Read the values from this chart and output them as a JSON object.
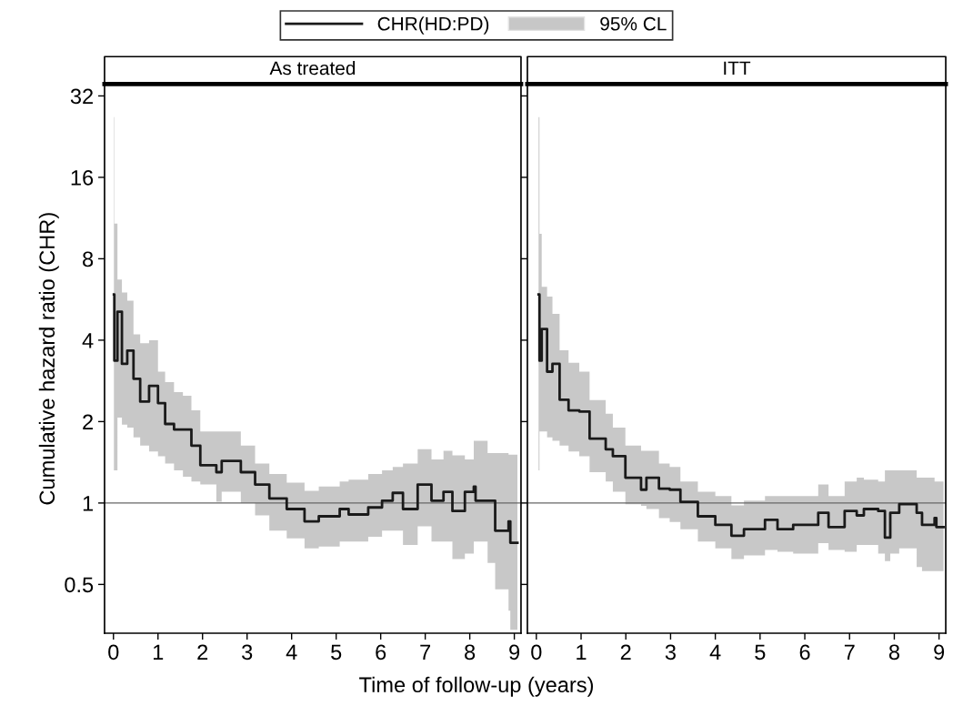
{
  "chart_data": [
    {
      "type": "step",
      "title": "As treated",
      "xlabel": "Time of follow-up (years)",
      "ylabel": "Cumulative hazard ratio (CHR)",
      "annotations": [
        "95% CL"
      ],
      "log": "y",
      "xlim": [
        -0.2,
        9.15
      ],
      "ylim": [
        0.33,
        35.4
      ],
      "xticks": [
        0,
        1,
        2,
        3,
        4,
        5,
        6,
        7,
        8,
        9
      ],
      "yticks": [
        0.5,
        1,
        2,
        4,
        8,
        16,
        32
      ],
      "legend": "top",
      "ref_lines": [
        {
          "axis": "y",
          "value": 1,
          "color": "#666666"
        }
      ],
      "series": [
        {
          "name": "CHR(HD:PD)",
          "color": "#1a1a1a",
          "x": [
            0.01,
            0.02,
            0.09,
            0.19,
            0.31,
            0.45,
            0.6,
            0.8,
            1.0,
            1.16,
            1.36,
            1.56,
            1.75,
            1.95,
            2.31,
            2.43,
            2.86,
            3.18,
            3.5,
            3.89,
            4.29,
            4.61,
            5.08,
            5.28,
            5.72,
            6.03,
            6.27,
            6.5,
            6.83,
            7.14,
            7.41,
            7.61,
            7.89,
            8.09,
            8.13,
            8.4,
            8.57,
            8.87,
            8.91,
            9.07
          ],
          "values": [
            5.9,
            3.36,
            5.1,
            3.27,
            3.66,
            2.88,
            2.37,
            2.71,
            2.34,
            1.96,
            1.87,
            1.87,
            1.63,
            1.38,
            1.3,
            1.43,
            1.3,
            1.17,
            1.04,
            0.95,
            0.855,
            0.893,
            0.95,
            0.907,
            0.963,
            1.02,
            1.09,
            0.95,
            1.17,
            1.02,
            1.1,
            0.934,
            1.1,
            1.15,
            1.02,
            1.02,
            0.79,
            0.855,
            0.713,
            0.713
          ],
          "upper": [
            26.7,
            10.8,
            6.7,
            6.0,
            5.6,
            4.2,
            3.9,
            4.0,
            3.06,
            2.8,
            2.57,
            2.49,
            2.2,
            1.84,
            1.84,
            1.84,
            1.63,
            1.4,
            1.28,
            1.19,
            1.11,
            1.15,
            1.2,
            1.22,
            1.28,
            1.32,
            1.36,
            1.4,
            1.58,
            1.45,
            1.56,
            1.5,
            1.45,
            1.7,
            1.7,
            1.53,
            1.53,
            1.51,
            1.51,
            1.51
          ],
          "lower": [
            1.32,
            1.32,
            2.07,
            1.95,
            1.9,
            1.75,
            1.63,
            1.55,
            1.49,
            1.4,
            1.32,
            1.25,
            1.2,
            1.17,
            1.01,
            1.1,
            1.0,
            0.9,
            0.79,
            0.74,
            0.68,
            0.69,
            0.72,
            0.72,
            0.75,
            0.79,
            0.79,
            0.7,
            0.82,
            0.72,
            0.72,
            0.62,
            0.65,
            0.72,
            0.72,
            0.6,
            0.48,
            0.4,
            0.34,
            0.34
          ]
        }
      ]
    },
    {
      "type": "step",
      "title": "ITT",
      "log": "y",
      "xlim": [
        -0.2,
        9.15
      ],
      "ylim": [
        0.33,
        35.4
      ],
      "xticks": [
        0,
        1,
        2,
        3,
        4,
        5,
        6,
        7,
        8,
        9
      ],
      "yticks": [
        0.5,
        1,
        2,
        4,
        8,
        16,
        32
      ],
      "tick_labels": "x",
      "ref_lines": [
        {
          "axis": "y",
          "value": 1,
          "color": "#666666"
        }
      ],
      "series": [
        {
          "color": "#1a1a1a",
          "x": [
            0.05,
            0.07,
            0.12,
            0.24,
            0.36,
            0.52,
            0.72,
            0.96,
            1.19,
            1.55,
            1.71,
            1.99,
            2.34,
            2.46,
            2.74,
            2.98,
            3.22,
            3.61,
            4.0,
            4.36,
            4.64,
            5.11,
            5.39,
            5.74,
            6.3,
            6.53,
            6.89,
            7.16,
            7.32,
            7.64,
            7.79,
            7.91,
            8.11,
            8.5,
            8.62,
            8.9,
            8.94,
            9.1
          ],
          "values": [
            5.9,
            3.36,
            4.4,
            3.06,
            3.27,
            2.41,
            2.2,
            2.18,
            1.73,
            1.58,
            1.49,
            1.24,
            1.12,
            1.24,
            1.13,
            1.12,
            1.01,
            0.893,
            0.83,
            0.757,
            0.8,
            0.867,
            0.8,
            0.83,
            0.92,
            0.815,
            0.934,
            0.9,
            0.95,
            0.934,
            0.745,
            0.92,
            0.99,
            0.92,
            0.83,
            0.88,
            0.815,
            0.815
          ],
          "upper": [
            26.7,
            9.9,
            6.3,
            5.8,
            5.0,
            3.67,
            3.3,
            3.06,
            2.4,
            2.14,
            1.9,
            1.63,
            1.56,
            1.56,
            1.4,
            1.36,
            1.2,
            1.1,
            1.06,
            0.98,
            1.02,
            1.06,
            1.06,
            1.06,
            1.17,
            1.06,
            1.2,
            1.24,
            1.22,
            1.2,
            1.32,
            1.32,
            1.32,
            1.24,
            1.24,
            1.2,
            1.2,
            1.2
          ],
          "lower": [
            1.32,
            1.84,
            1.84,
            1.75,
            1.7,
            1.63,
            1.55,
            1.49,
            1.3,
            1.2,
            1.1,
            0.99,
            0.977,
            0.95,
            0.88,
            0.85,
            0.8,
            0.72,
            0.68,
            0.62,
            0.64,
            0.67,
            0.66,
            0.65,
            0.71,
            0.67,
            0.66,
            0.7,
            0.7,
            0.65,
            0.61,
            0.65,
            0.68,
            0.58,
            0.56,
            0.56,
            0.56,
            0.56
          ]
        }
      ]
    }
  ]
}
